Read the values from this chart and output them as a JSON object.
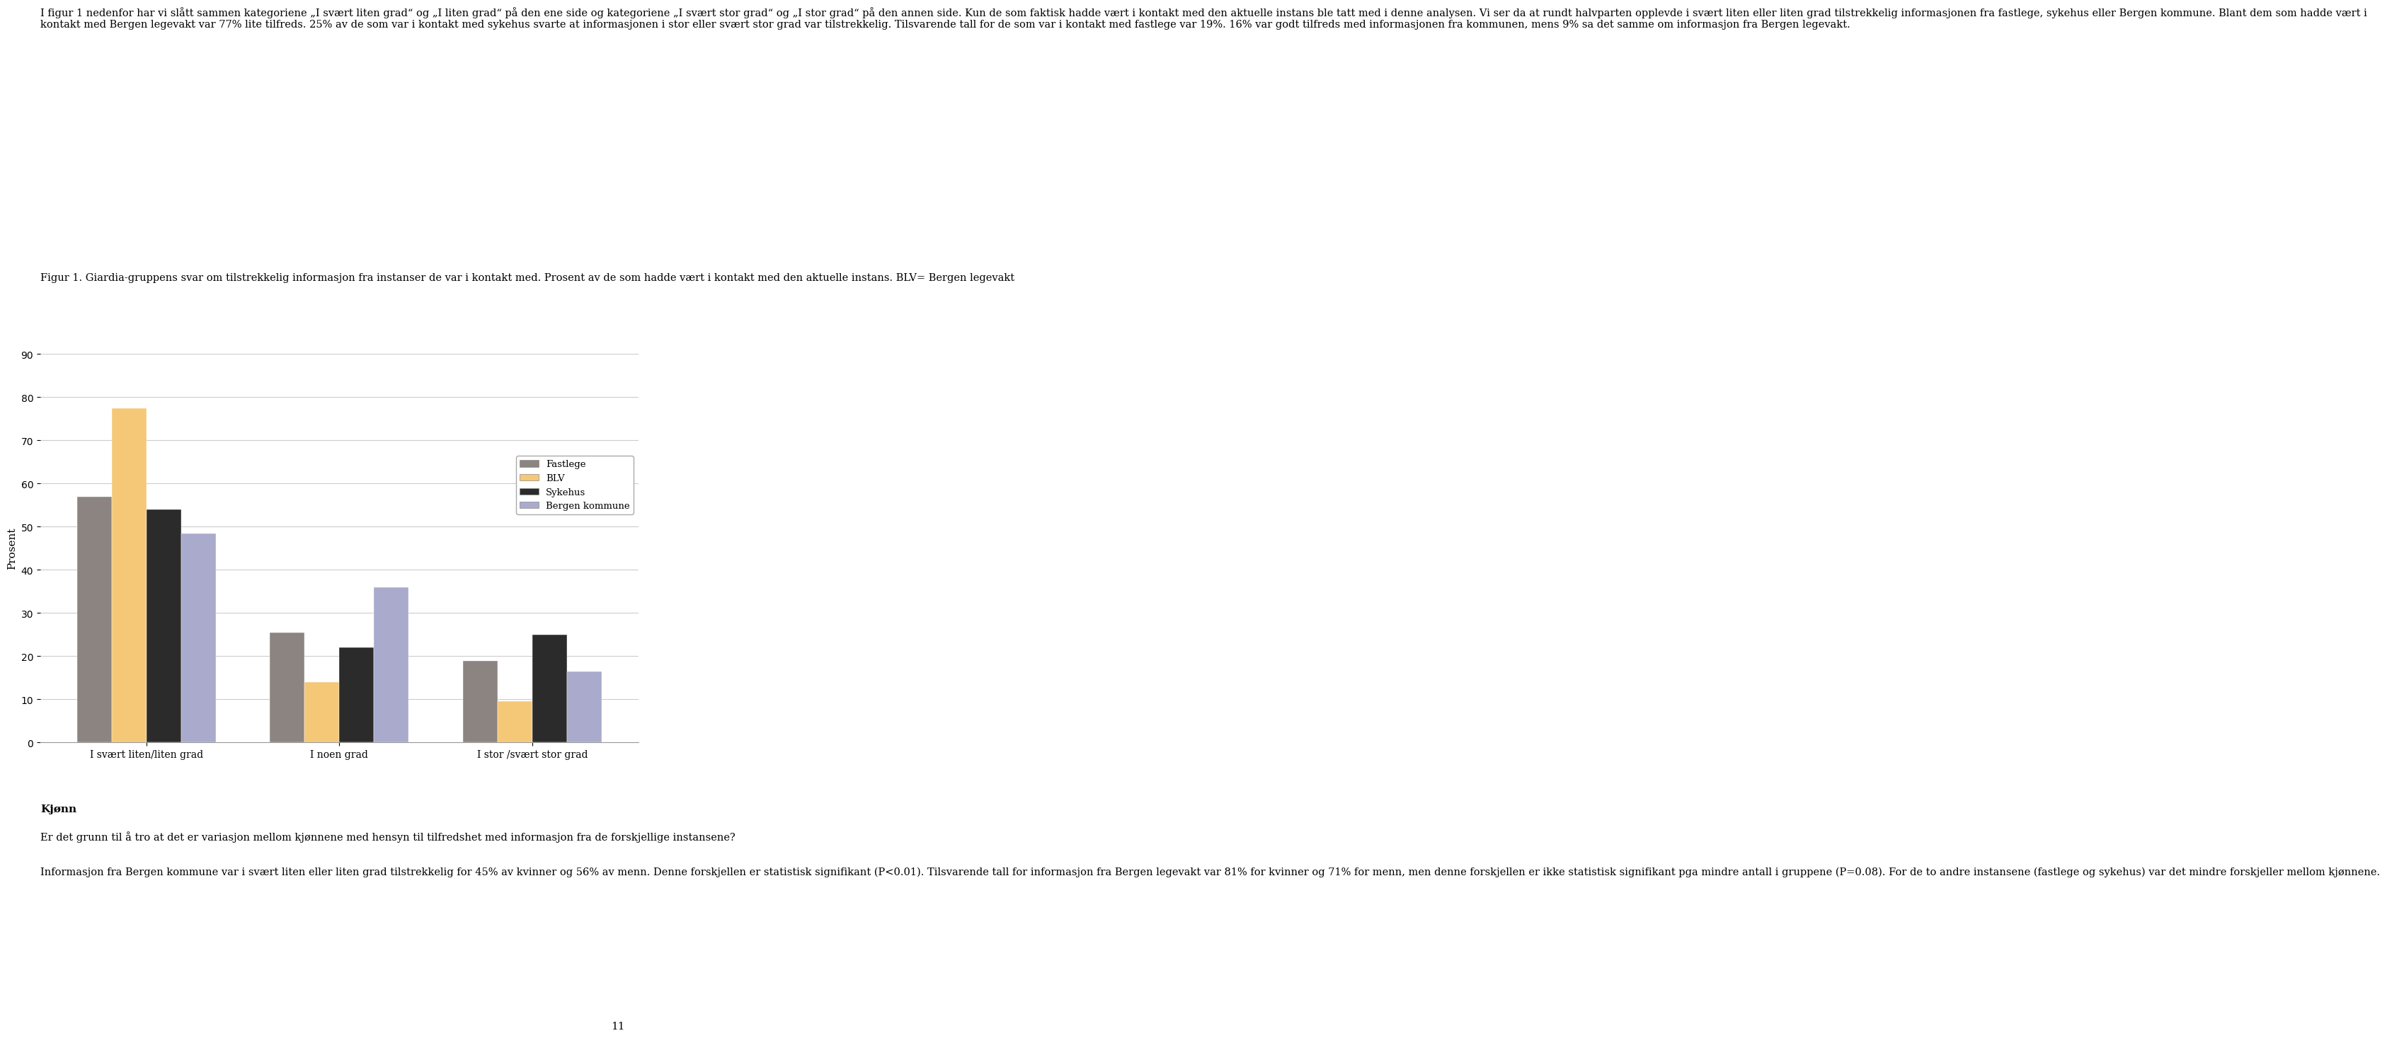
{
  "para1": "I figur 1 nedenfor har vi slått sammen kategoriene „I svært liten grad“ og „I liten grad“ på den ene side og kategoriene „I svært stor grad“ og „I stor grad“ på den annen side. Kun de som faktisk hadde vært i kontakt med den aktuelle instans ble tatt med i denne analysen. Vi ser da at rundt halvparten opplevde i svært liten eller liten grad tilstrekkelig informasjonen fra fastlege, sykehus eller Bergen kommune. Blant dem som hadde vært i kontakt med Bergen legevakt var 77% lite tilfreds. 25% av de som var i kontakt med sykehus svarte at informasjonen i stor eller svært stor grad var tilstrekkelig. Tilsvarende tall for de som var i kontakt med fastlege var 19%. 16% var godt tilfreds med informasjonen fra kommunen, mens 9% sa det samme om informasjon fra Bergen legevakt.",
  "figur_label": "Figur 1.",
  "figur_text_normal1": " Giardia-gruppens svar om ",
  "figur_text_bold": "tilstrekkelig informasjon",
  "figur_text_normal2": " fra instanser de var i kontakt med. Prosent av de som hadde vært i kontakt med den aktuelle instans. BLV= Bergen legevakt",
  "section_title": "Kjønn",
  "para2": "Er det grunn til å tro at det er variasjon mellom kjønnene med hensyn til tilfredshet med informasjon fra de forskjellige instansene?",
  "para3": "Informasjon fra Bergen kommune var i svært liten eller liten grad tilstrekkelig for 45% av kvinner og 56% av menn. Denne forskjellen er statistisk signifikant (P<0.01). Tilsvarende tall for informasjon fra Bergen legevakt var 81% for kvinner og 71% for menn, men denne forskjellen er ikke statistisk signifikant pga mindre antall i gruppene (P=0.08). For de to andre instansene (fastlege og sykehus) var det mindre forskjeller mellom kjønnene.",
  "page_number": "11",
  "ylabel": "Prosent",
  "categories": [
    "I svært liten/liten grad",
    "I noen grad",
    "I stor /svært stor grad"
  ],
  "series": {
    "Fastlege": [
      57,
      25.5,
      19
    ],
    "BLV": [
      77.5,
      14,
      9.5
    ],
    "Sykehus": [
      54,
      22,
      25
    ],
    "Bergen kommune": [
      48.5,
      36,
      16.5
    ]
  },
  "colors": {
    "Fastlege": "#8B8480",
    "BLV": "#F5C878",
    "Sykehus": "#2B2B2B",
    "Bergen kommune": "#AAAACC"
  },
  "ylim": [
    0,
    90
  ],
  "yticks": [
    0,
    10,
    20,
    30,
    40,
    50,
    60,
    70,
    80,
    90
  ],
  "bar_width": 0.18,
  "background_color": "#ffffff",
  "grid_color": "#cccccc"
}
